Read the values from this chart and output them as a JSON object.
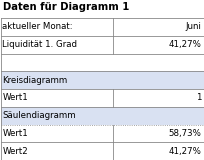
{
  "title": "Daten für Diagramm 1",
  "rows": [
    {
      "label": "aktueller Monat:",
      "value": "Juni",
      "section_header": false,
      "empty": false,
      "value_align": "left"
    },
    {
      "label": "Liquidität 1. Grad",
      "value": "41,27%",
      "section_header": false,
      "empty": false,
      "value_align": "right"
    },
    {
      "label": "",
      "value": "",
      "section_header": false,
      "empty": true,
      "value_align": "right"
    },
    {
      "label": "Kreisdiagramm",
      "value": "",
      "section_header": true,
      "empty": false,
      "value_align": "right"
    },
    {
      "label": "Wert1",
      "value": "1",
      "section_header": false,
      "empty": false,
      "value_align": "right"
    },
    {
      "label": "Säulendiagramm",
      "value": "",
      "section_header": true,
      "empty": false,
      "value_align": "right"
    },
    {
      "label": "Wert1",
      "value": "58,73%",
      "section_header": false,
      "empty": false,
      "value_align": "right"
    },
    {
      "label": "Wert2",
      "value": "41,27%",
      "section_header": false,
      "empty": false,
      "value_align": "right"
    }
  ],
  "col_split": 0.555,
  "title_fontsize": 7.2,
  "cell_fontsize": 6.2,
  "border_color": "#888888",
  "section_bg": "#d9e1f2",
  "text_color": "#000000",
  "fig_bg": "#ffffff",
  "dotted_rows": [
    6
  ]
}
